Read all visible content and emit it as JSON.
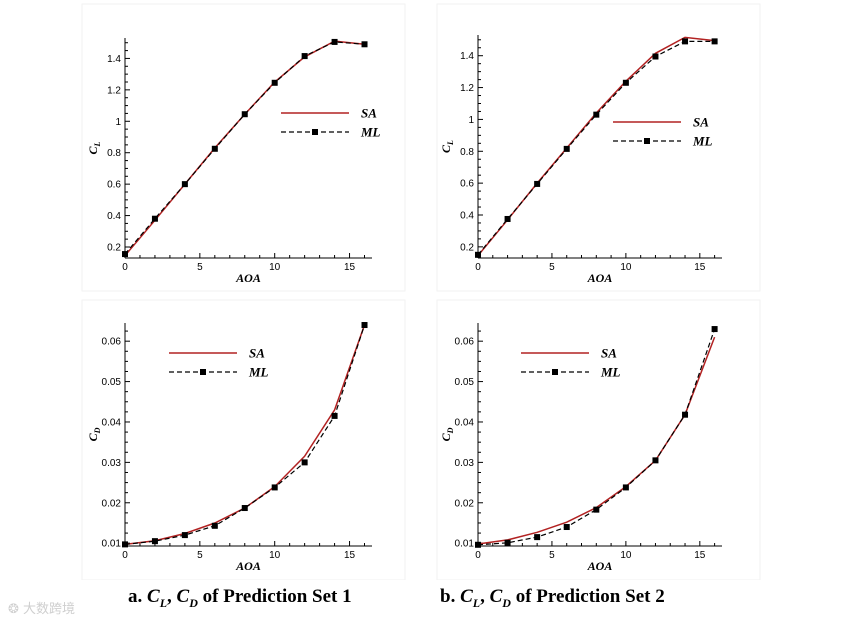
{
  "captions": [
    {
      "prefix": "a. ",
      "var1": "C",
      "sub1": "L",
      "sep": ", ",
      "var2": "C",
      "sub2": "D",
      "suffix": " of Prediction Set 1"
    },
    {
      "prefix": "b. ",
      "var1": "C",
      "sub1": "L",
      "sep": ", ",
      "var2": "C",
      "sub2": "D",
      "suffix": " of Prediction Set 2"
    }
  ],
  "watermark": "大数跨境",
  "colors": {
    "sa": "#b22222",
    "ml": "#000000"
  },
  "chart_data": [
    {
      "type": "line",
      "xlabel": "AOA",
      "ylabel": "C",
      "ylabel_sub": "L",
      "xlim": [
        0,
        16.5
      ],
      "ylim": [
        0.13,
        1.53
      ],
      "xticks": [
        0,
        5,
        10,
        15
      ],
      "xtick_labels": [
        "0",
        "5",
        "10",
        "15"
      ],
      "yticks": [
        0.2,
        0.4,
        0.6,
        0.8,
        1.0,
        1.2,
        1.4
      ],
      "ytick_labels": [
        "0.2",
        "0.4",
        "0.6",
        "0.8",
        "1",
        "1.2",
        "1.4"
      ],
      "legend": "right",
      "series": [
        {
          "name": "SA",
          "style": "solid",
          "x": [
            0,
            2,
            4,
            6,
            8,
            10,
            12,
            14,
            16
          ],
          "y": [
            0.145,
            0.37,
            0.6,
            0.83,
            1.045,
            1.25,
            1.41,
            1.51,
            1.49
          ]
        },
        {
          "name": "ML",
          "style": "dashed-square",
          "x": [
            0,
            2,
            4,
            6,
            8,
            10,
            12,
            14,
            16
          ],
          "y": [
            0.155,
            0.38,
            0.6,
            0.825,
            1.045,
            1.245,
            1.415,
            1.505,
            1.49
          ]
        }
      ]
    },
    {
      "type": "line",
      "xlabel": "AOA",
      "ylabel": "C",
      "ylabel_sub": "L",
      "xlim": [
        0,
        16.5
      ],
      "ylim": [
        0.13,
        1.53
      ],
      "xticks": [
        0,
        5,
        10,
        15
      ],
      "xtick_labels": [
        "0",
        "5",
        "10",
        "15"
      ],
      "yticks": [
        0.2,
        0.4,
        0.6,
        0.8,
        1.0,
        1.2,
        1.4
      ],
      "ytick_labels": [
        "0.2",
        "0.4",
        "0.6",
        "0.8",
        "1",
        "1.2",
        "1.4"
      ],
      "legend": "right",
      "series": [
        {
          "name": "SA",
          "style": "solid",
          "x": [
            0,
            2,
            4,
            6,
            8,
            10,
            12,
            14,
            16
          ],
          "y": [
            0.145,
            0.37,
            0.6,
            0.82,
            1.04,
            1.24,
            1.415,
            1.515,
            1.495
          ]
        },
        {
          "name": "ML",
          "style": "dashed-square",
          "x": [
            0,
            2,
            4,
            6,
            8,
            10,
            12,
            14,
            16
          ],
          "y": [
            0.15,
            0.375,
            0.595,
            0.815,
            1.03,
            1.23,
            1.395,
            1.49,
            1.49
          ]
        }
      ]
    },
    {
      "type": "line",
      "xlabel": "AOA",
      "ylabel": "C",
      "ylabel_sub": "D",
      "xlim": [
        0,
        16.5
      ],
      "ylim": [
        0.0093,
        0.0645
      ],
      "xticks": [
        0,
        5,
        10,
        15
      ],
      "xtick_labels": [
        "0",
        "5",
        "10",
        "15"
      ],
      "yticks": [
        0.01,
        0.02,
        0.03,
        0.04,
        0.05,
        0.06
      ],
      "ytick_labels": [
        "0.01",
        "0.02",
        "0.03",
        "0.04",
        "0.05",
        "0.06"
      ],
      "legend": "top-left",
      "series": [
        {
          "name": "SA",
          "style": "solid",
          "x": [
            0,
            2,
            4,
            6,
            8,
            10,
            12,
            14,
            16
          ],
          "y": [
            0.0097,
            0.0106,
            0.0124,
            0.015,
            0.0187,
            0.024,
            0.0315,
            0.043,
            0.064
          ]
        },
        {
          "name": "ML",
          "style": "dashed-square",
          "x": [
            0,
            2,
            4,
            6,
            8,
            10,
            12,
            14,
            16
          ],
          "y": [
            0.0097,
            0.0105,
            0.012,
            0.0143,
            0.0187,
            0.0238,
            0.03,
            0.0415,
            0.064
          ]
        }
      ]
    },
    {
      "type": "line",
      "xlabel": "AOA",
      "ylabel": "C",
      "ylabel_sub": "D",
      "xlim": [
        0,
        16.5
      ],
      "ylim": [
        0.0093,
        0.0645
      ],
      "xticks": [
        0,
        5,
        10,
        15
      ],
      "xtick_labels": [
        "0",
        "5",
        "10",
        "15"
      ],
      "yticks": [
        0.01,
        0.02,
        0.03,
        0.04,
        0.05,
        0.06
      ],
      "ytick_labels": [
        "0.01",
        "0.02",
        "0.03",
        "0.04",
        "0.05",
        "0.06"
      ],
      "legend": "top-left",
      "series": [
        {
          "name": "SA",
          "style": "solid",
          "x": [
            0,
            2,
            4,
            6,
            8,
            10,
            12,
            14,
            16
          ],
          "y": [
            0.0098,
            0.0108,
            0.0127,
            0.0152,
            0.0188,
            0.024,
            0.0305,
            0.0418,
            0.061
          ]
        },
        {
          "name": "ML",
          "style": "dashed-square",
          "x": [
            0,
            2,
            4,
            6,
            8,
            10,
            12,
            14,
            16
          ],
          "y": [
            0.0096,
            0.0101,
            0.0115,
            0.014,
            0.0183,
            0.0238,
            0.0305,
            0.0418,
            0.063
          ]
        }
      ]
    }
  ]
}
